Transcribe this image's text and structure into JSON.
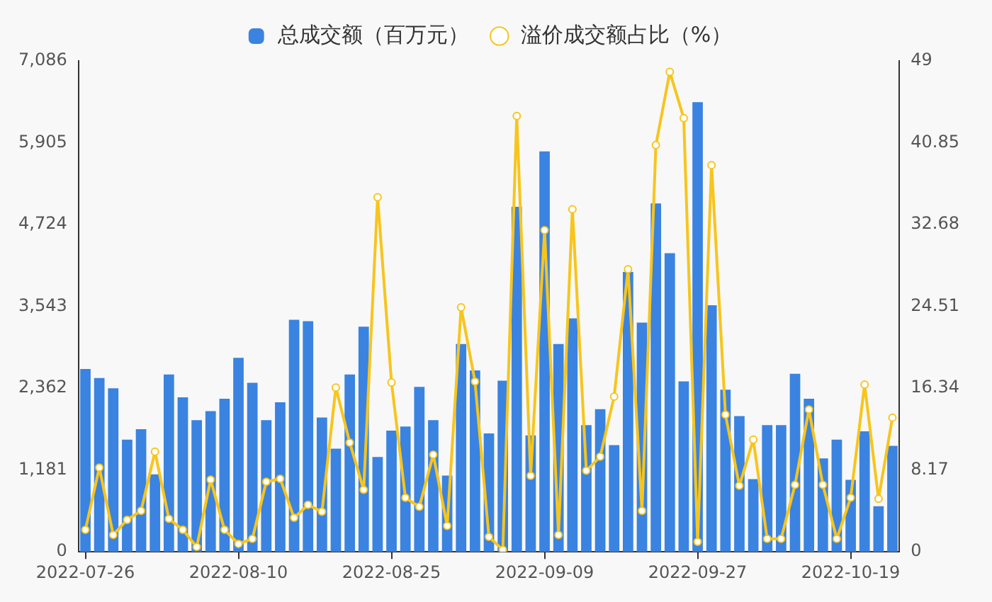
{
  "chart_data": {
    "type": "bar",
    "categories": [
      "2022-07-26",
      null,
      null,
      null,
      null,
      null,
      null,
      null,
      null,
      null,
      null,
      "2022-08-10",
      null,
      null,
      null,
      null,
      null,
      null,
      null,
      null,
      null,
      null,
      "2022-08-25",
      null,
      null,
      null,
      null,
      null,
      null,
      null,
      null,
      null,
      null,
      "2022-09-09",
      null,
      null,
      null,
      null,
      null,
      null,
      null,
      null,
      null,
      null,
      "2022-09-27",
      null,
      null,
      null,
      null,
      null,
      null,
      null,
      null,
      null,
      null,
      "2022-10-19",
      null,
      null,
      null
    ],
    "series": [
      {
        "name": "总成交额（百万元）",
        "color": "#3a83e0",
        "values": [
          2640,
          2510,
          2360,
          1620,
          1770,
          1120,
          2560,
          2230,
          1900,
          2030,
          2210,
          2800,
          2440,
          1900,
          2160,
          3350,
          3330,
          1940,
          1490,
          2560,
          3250,
          1370,
          1750,
          1810,
          2380,
          1900,
          1100,
          3000,
          2620,
          1710,
          2470,
          4980,
          1680,
          5780,
          3000,
          3370,
          1830,
          2060,
          1540,
          4040,
          3310,
          5030,
          4310,
          2460,
          6490,
          3560,
          2340,
          1960,
          1050,
          1830,
          1830,
          2570,
          2210,
          1350,
          1620,
          1040,
          1740,
          660,
          1530
        ]
      },
      {
        "name": "溢价成交额占比（%）",
        "type": "line",
        "axis": "y2",
        "color": "#f7c51c",
        "values": [
          2.2,
          8.4,
          1.7,
          3.2,
          4.1,
          10.0,
          3.3,
          2.2,
          0.5,
          7.2,
          2.2,
          0.8,
          1.3,
          7.0,
          7.3,
          3.4,
          4.7,
          4.0,
          16.4,
          10.9,
          6.2,
          35.4,
          16.9,
          5.4,
          4.5,
          9.7,
          2.6,
          24.4,
          17.0,
          1.5,
          0.2,
          43.5,
          7.6,
          32.1,
          1.7,
          34.2,
          8.1,
          9.5,
          15.5,
          28.2,
          4.1,
          40.6,
          47.9,
          43.3,
          1.0,
          38.6,
          13.7,
          6.6,
          11.2,
          1.3,
          1.3,
          6.7,
          14.2,
          6.7,
          1.3,
          5.4,
          16.7,
          5.3,
          13.4
        ]
      }
    ],
    "ylim": [
      0,
      7086
    ],
    "yticks": [
      0,
      {
        "value": 1181,
        "label": "1,181"
      },
      {
        "value": 2362,
        "label": "2,362"
      },
      {
        "value": 3543,
        "label": "3,543"
      },
      {
        "value": 4724,
        "label": "4,724"
      },
      {
        "value": 5905,
        "label": "5,905"
      },
      {
        "value": 7086,
        "label": "7,086"
      }
    ],
    "y2lim": [
      0,
      49
    ],
    "y2ticks": [
      0,
      8.17,
      16.34,
      24.51,
      32.68,
      40.85,
      49
    ],
    "legend": "top",
    "grid": false,
    "marker": "circle"
  }
}
